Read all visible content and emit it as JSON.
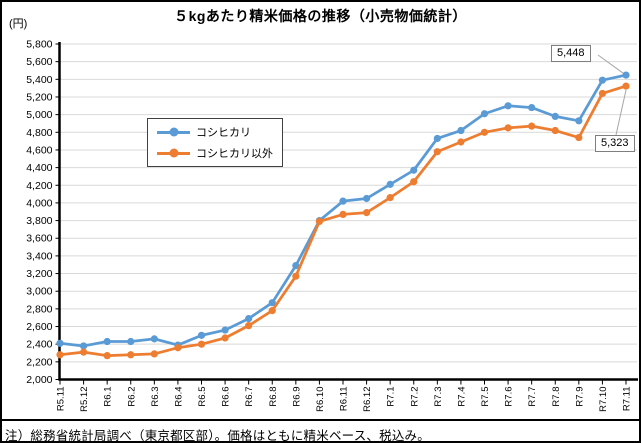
{
  "title": "５kgあたり精米価格の推移（小売物価統計）",
  "y_unit_label": "(円)",
  "note": "注）総務省統計局調べ（東京都区部）。価格はともに精米ベース、税込み。",
  "colors": {
    "series_koshihikari": "#5B9BD5",
    "series_other": "#ED7D31",
    "gridline": "#D9D9D9",
    "axis": "#000000",
    "callout_border": "#7f7f7f",
    "leader_line": "#a6a6a6"
  },
  "chart_data": {
    "type": "line",
    "title": "５kgあたり精米価格の推移（小売物価統計）",
    "ylabel": "(円)",
    "ylim": [
      2000,
      5800
    ],
    "y_tick_step": 200,
    "y_ticks": [
      "2,000",
      "2,200",
      "2,400",
      "2,600",
      "2,800",
      "3,000",
      "3,200",
      "3,400",
      "3,600",
      "3,800",
      "4,000",
      "4,200",
      "4,400",
      "4,600",
      "4,800",
      "5,000",
      "5,200",
      "5,400",
      "5,600",
      "5,800"
    ],
    "grid": true,
    "legend_position": "inside-left",
    "categories": [
      "R5.11",
      "R5.12",
      "R6.1",
      "R6.2",
      "R6.3",
      "R6.4",
      "R6.5",
      "R6.6",
      "R6.7",
      "R6.8",
      "R6.9",
      "R6.10",
      "R6.11",
      "R6.12",
      "R7.1",
      "R7.2",
      "R7.3",
      "R7.4",
      "R7.5",
      "R7.6",
      "R7.7",
      "R7.8",
      "R7.9",
      "R7.10",
      "R7.11"
    ],
    "series": [
      {
        "name": "コシヒカリ",
        "color": "#5B9BD5",
        "values": [
          2410,
          2380,
          2430,
          2430,
          2460,
          2390,
          2500,
          2560,
          2690,
          2870,
          3290,
          3800,
          4020,
          4050,
          4210,
          4370,
          4730,
          4820,
          5010,
          5100,
          5080,
          4980,
          4930,
          5390,
          5448
        ]
      },
      {
        "name": "コシヒカリ以外",
        "color": "#ED7D31",
        "values": [
          2280,
          2310,
          2270,
          2280,
          2290,
          2360,
          2400,
          2470,
          2610,
          2780,
          3170,
          3790,
          3870,
          3890,
          4060,
          4240,
          4580,
          4690,
          4800,
          4850,
          4870,
          4820,
          4740,
          5240,
          5323
        ]
      }
    ],
    "annotations": [
      {
        "series": "コシヒカリ",
        "category": "R7.11",
        "label": "5,448"
      },
      {
        "series": "コシヒカリ以外",
        "category": "R7.11",
        "label": "5,323"
      }
    ]
  }
}
